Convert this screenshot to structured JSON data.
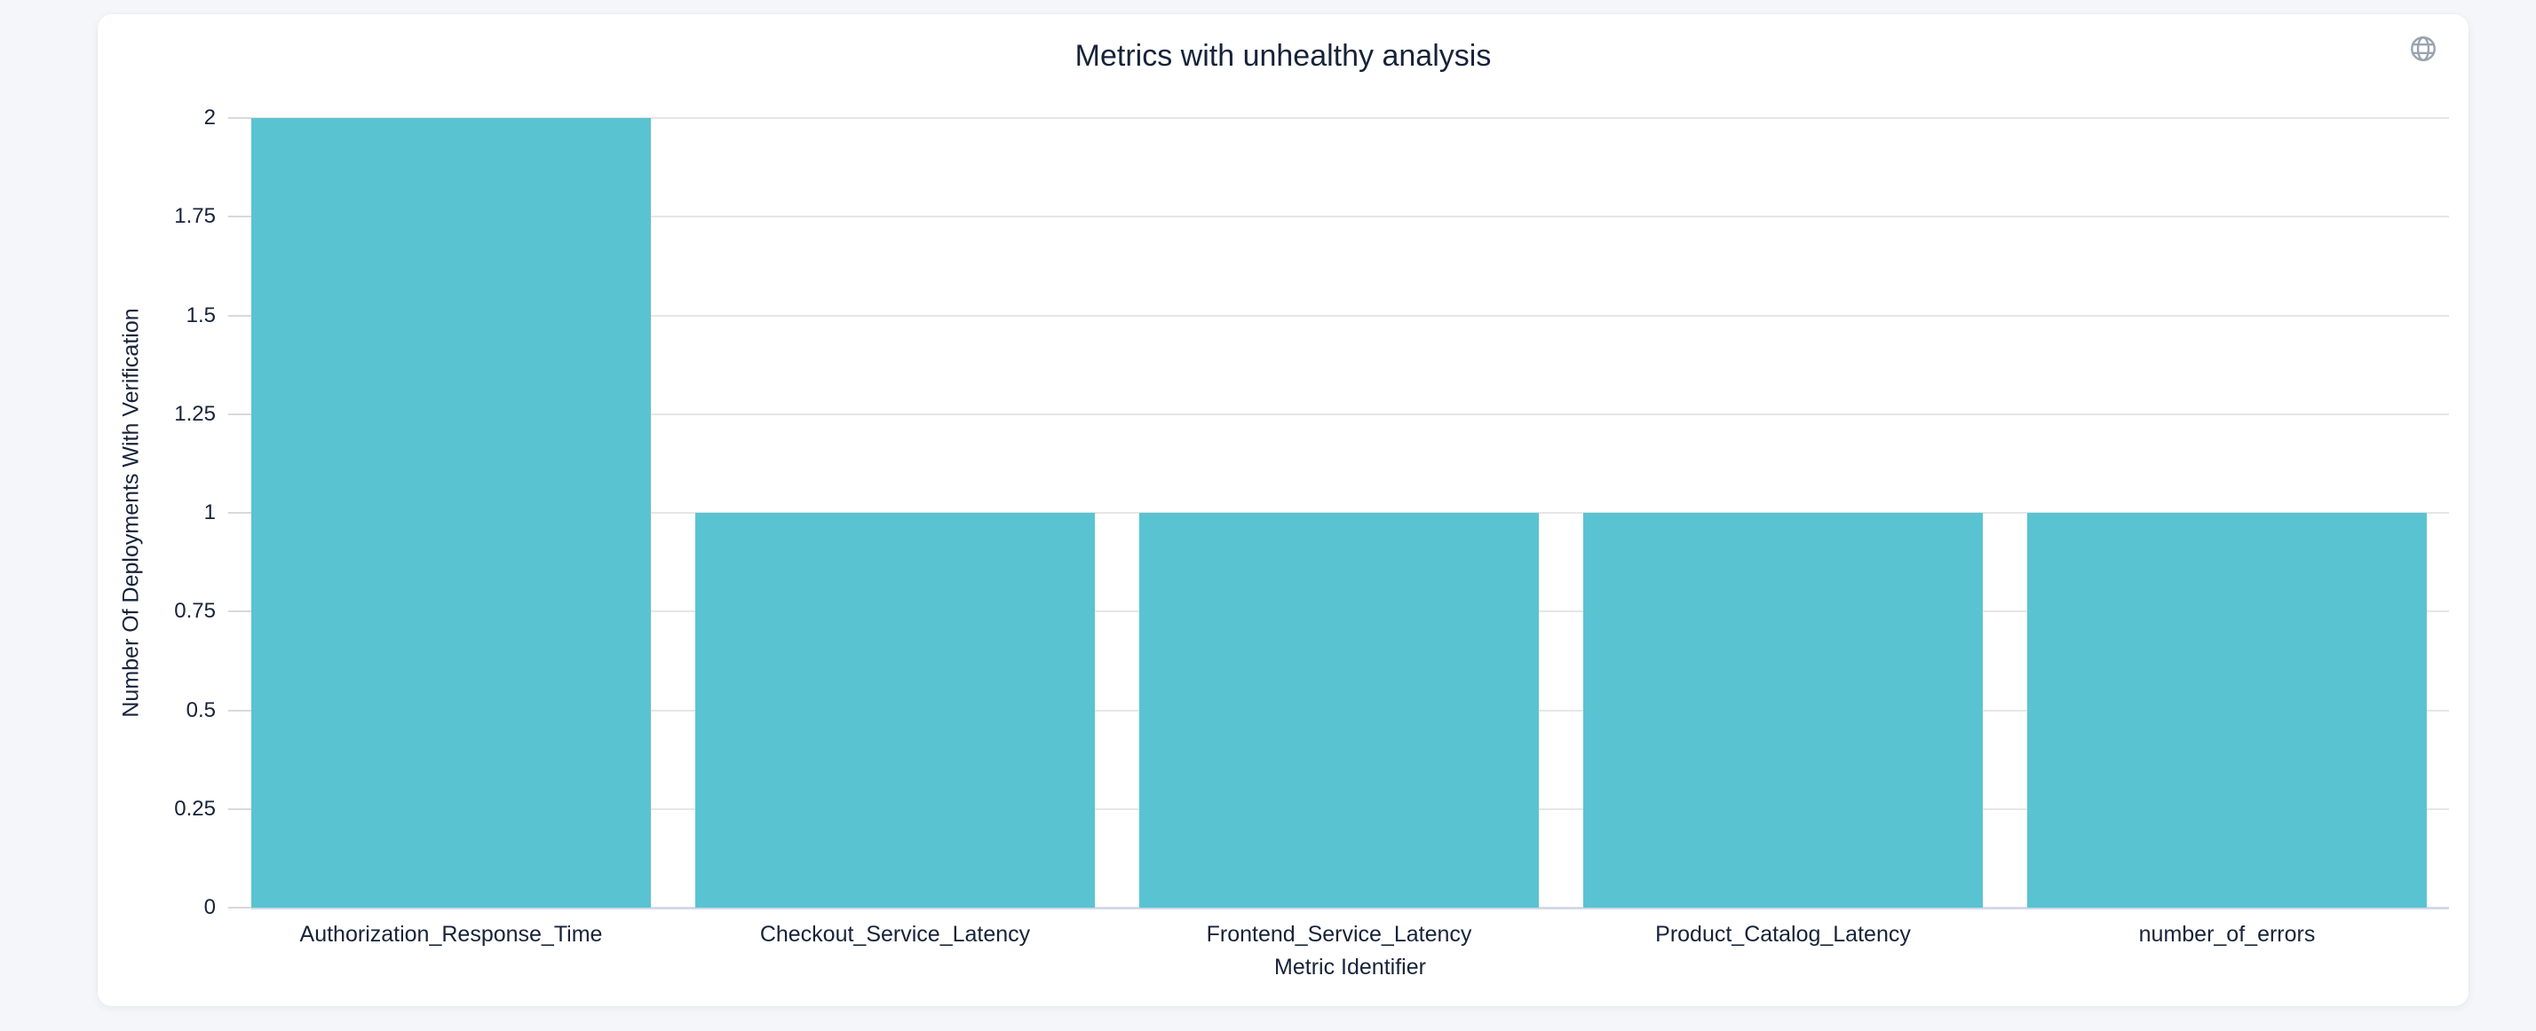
{
  "page": {
    "background_color": "#f4f6f9",
    "card_background": "#ffffff"
  },
  "header": {
    "title": "Metrics with unhealthy analysis",
    "globe_icon": "globe-icon",
    "icon_color": "#9aa3b0"
  },
  "chart_data": {
    "type": "bar",
    "title": "Metrics with unhealthy analysis",
    "categories": [
      "Authorization_Response_Time",
      "Checkout_Service_Latency",
      "Frontend_Service_Latency",
      "Product_Catalog_Latency",
      "number_of_errors"
    ],
    "values": [
      2,
      1,
      1,
      1,
      1
    ],
    "xlabel": "Metric Identifier",
    "ylabel": "Number Of Deployments With Verification",
    "ylim": [
      0,
      2
    ],
    "ytick_labels": [
      "0",
      "0.25",
      "0.5",
      "0.75",
      "1",
      "1.25",
      "1.5",
      "1.75",
      "2"
    ],
    "grid": true,
    "legend": false,
    "bar_color": "#5ac3d2",
    "gridline_color": "#e6e6e6",
    "axis_line_color": "#d3d9e7",
    "tick_color": "#d9d9d9",
    "text_color": "#172339"
  }
}
